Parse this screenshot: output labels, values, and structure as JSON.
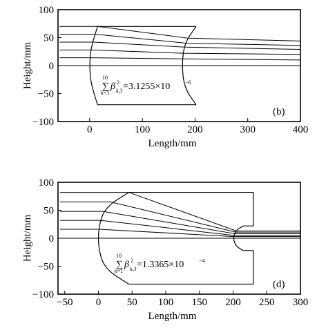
{
  "chart_data": [
    {
      "type": "line",
      "panel_label": "(b)",
      "xlabel": "Length/mm",
      "ylabel": "Height/mm",
      "xlim": [
        -60,
        400
      ],
      "ylim": [
        -100,
        100
      ],
      "xticks": [
        0,
        100,
        200,
        300,
        400
      ],
      "yticks": [
        100,
        50,
        0,
        -50,
        -100
      ],
      "formula": {
        "sum_upper": "10",
        "sum_lower": "k=1",
        "symbol": "β",
        "sup": "2",
        "sub": "k,3",
        "rhs": "=3.1255×10",
        "exp": "−6"
      },
      "grid": false,
      "lens": {
        "left_surface": [
          [
            15,
            70
          ],
          [
            2,
            30
          ],
          [
            0,
            0
          ],
          [
            2,
            -30
          ],
          [
            15,
            -70
          ]
        ],
        "right_surface": [
          [
            202,
            70
          ],
          [
            180,
            40
          ],
          [
            175,
            0
          ],
          [
            180,
            -40
          ],
          [
            202,
            -70
          ]
        ],
        "top_edge": [
          [
            15,
            70
          ],
          [
            202,
            70
          ]
        ],
        "bottom_edge": [
          [
            15,
            -70
          ],
          [
            202,
            -70
          ]
        ]
      },
      "series": [
        {
          "values": [
            [
              -57,
              70
            ],
            [
              15,
              70
            ],
            [
              187,
              49
            ],
            [
              400,
              44
            ]
          ]
        },
        {
          "values": [
            [
              -57,
              56
            ],
            [
              11,
              56
            ],
            [
              185,
              40
            ],
            [
              400,
              36
            ]
          ]
        },
        {
          "values": [
            [
              -57,
              42
            ],
            [
              8,
              42
            ],
            [
              182,
              33
            ],
            [
              400,
              29
            ]
          ]
        },
        {
          "values": [
            [
              -57,
              28
            ],
            [
              5,
              28
            ],
            [
              179,
              22
            ],
            [
              400,
              20
            ]
          ]
        },
        {
          "values": [
            [
              -57,
              14
            ],
            [
              2,
              14
            ],
            [
              177,
              12
            ],
            [
              400,
              10
            ]
          ]
        },
        {
          "values": [
            [
              -57,
              0
            ],
            [
              0,
              0
            ],
            [
              175,
              0
            ],
            [
              400,
              0
            ]
          ]
        }
      ]
    },
    {
      "type": "line",
      "panel_label": "(d)",
      "xlabel": "Length/mm",
      "ylabel": "Height/mm",
      "xlim": [
        -60,
        300
      ],
      "ylim": [
        -100,
        100
      ],
      "xticks": [
        -50,
        0,
        50,
        100,
        150,
        200,
        250,
        300
      ],
      "yticks": [
        100,
        50,
        0,
        -50,
        -100
      ],
      "formula": {
        "sum_upper": "10",
        "sum_lower": "k=1",
        "symbol": "β",
        "sup": "2",
        "sub": "k,3",
        "rhs": "=1.3365×10",
        "exp": "−4"
      },
      "grid": false,
      "lens": {
        "left_surface": [
          [
            45,
            82
          ],
          [
            10,
            55
          ],
          [
            0,
            20
          ],
          [
            0,
            -20
          ],
          [
            10,
            -55
          ],
          [
            45,
            -82
          ]
        ],
        "right_surface": [
          [
            215,
            22
          ],
          [
            204,
            14
          ],
          [
            200,
            0
          ],
          [
            204,
            -14
          ],
          [
            215,
            -22
          ]
        ],
        "outline": [
          [
            45,
            82
          ],
          [
            230,
            82
          ],
          [
            230,
            22
          ],
          [
            215,
            22
          ]
        ],
        "outline_bottom": [
          [
            215,
            -22
          ],
          [
            230,
            -22
          ],
          [
            230,
            -82
          ],
          [
            45,
            -82
          ]
        ]
      },
      "series": [
        {
          "values": [
            [
              -57,
              82
            ],
            [
              45,
              82
            ],
            [
              205,
              13
            ],
            [
              300,
              13
            ]
          ]
        },
        {
          "values": [
            [
              -57,
              65
            ],
            [
              18,
              65
            ],
            [
              204,
              11
            ],
            [
              300,
              11
            ]
          ]
        },
        {
          "values": [
            [
              -57,
              48
            ],
            [
              7,
              48
            ],
            [
              203,
              8
            ],
            [
              300,
              8
            ]
          ]
        },
        {
          "values": [
            [
              -57,
              32
            ],
            [
              3,
              32
            ],
            [
              202,
              5
            ],
            [
              300,
              5
            ]
          ]
        },
        {
          "values": [
            [
              -57,
              16
            ],
            [
              1,
              16
            ],
            [
              201,
              3
            ],
            [
              300,
              3
            ]
          ]
        },
        {
          "values": [
            [
              -57,
              0
            ],
            [
              0,
              0
            ],
            [
              200,
              0
            ],
            [
              300,
              0
            ]
          ]
        }
      ]
    }
  ]
}
